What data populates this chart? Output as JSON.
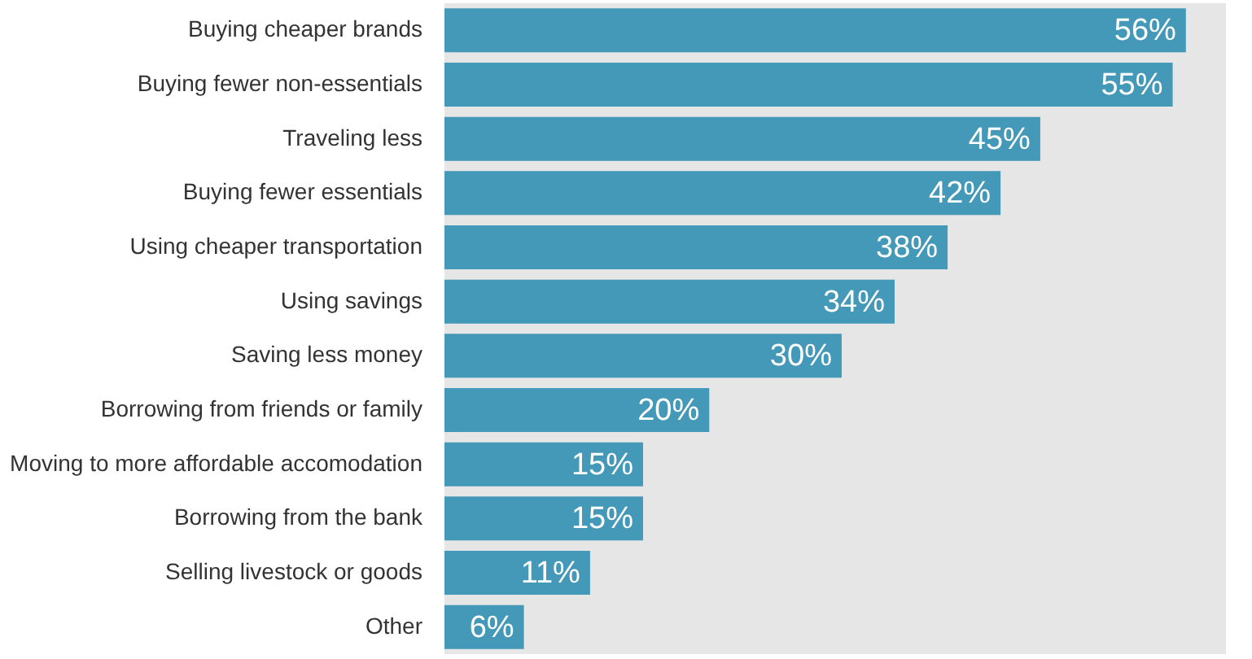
{
  "chart_data": {
    "type": "bar",
    "orientation": "horizontal",
    "categories": [
      "Buying cheaper brands",
      "Buying fewer non-essentials",
      "Traveling less",
      "Buying fewer essentials",
      "Using cheaper transportation",
      "Using savings",
      "Saving less money",
      "Borrowing from friends or family",
      "Moving to more affordable accomodation",
      "Borrowing from the bank",
      "Selling livestock or goods",
      "Other"
    ],
    "values": [
      56,
      55,
      45,
      42,
      38,
      34,
      30,
      20,
      15,
      15,
      11,
      6
    ],
    "value_labels": [
      "56%",
      "55%",
      "45%",
      "42%",
      "38%",
      "34%",
      "30%",
      "20%",
      "15%",
      "15%",
      "11%",
      "6%"
    ],
    "color": "#4599b8"
  }
}
